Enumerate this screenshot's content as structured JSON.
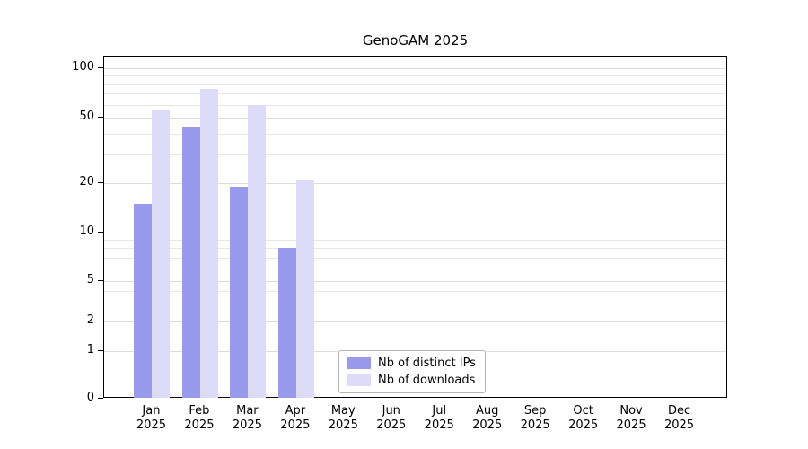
{
  "title": "GenoGAM 2025",
  "chart_data": {
    "type": "bar",
    "title": "GenoGAM 2025",
    "categories": [
      {
        "month": "Jan",
        "year": "2025"
      },
      {
        "month": "Feb",
        "year": "2025"
      },
      {
        "month": "Mar",
        "year": "2025"
      },
      {
        "month": "Apr",
        "year": "2025"
      },
      {
        "month": "May",
        "year": "2025"
      },
      {
        "month": "Jun",
        "year": "2025"
      },
      {
        "month": "Jul",
        "year": "2025"
      },
      {
        "month": "Aug",
        "year": "2025"
      },
      {
        "month": "Sep",
        "year": "2025"
      },
      {
        "month": "Oct",
        "year": "2025"
      },
      {
        "month": "Nov",
        "year": "2025"
      },
      {
        "month": "Dec",
        "year": "2025"
      }
    ],
    "series": [
      {
        "name": "Nb of distinct IPs",
        "color": "#9999ee",
        "values": [
          15,
          44,
          19,
          8,
          0,
          0,
          0,
          0,
          0,
          0,
          0,
          0
        ]
      },
      {
        "name": "Nb of downloads",
        "color": "#dcdcf8",
        "values": [
          55,
          75,
          60,
          21,
          0,
          0,
          0,
          0,
          0,
          0,
          0,
          0
        ]
      }
    ],
    "y_ticks": [
      0,
      1,
      2,
      5,
      10,
      20,
      50,
      100
    ],
    "y_scale": "log-like with 0 baseline",
    "ylim": [
      0,
      120
    ],
    "grid": "horizontal",
    "legend_position": "bottom-center-inside"
  },
  "legend": {
    "items": [
      {
        "label": "Nb of distinct IPs"
      },
      {
        "label": "Nb of downloads"
      }
    ]
  }
}
